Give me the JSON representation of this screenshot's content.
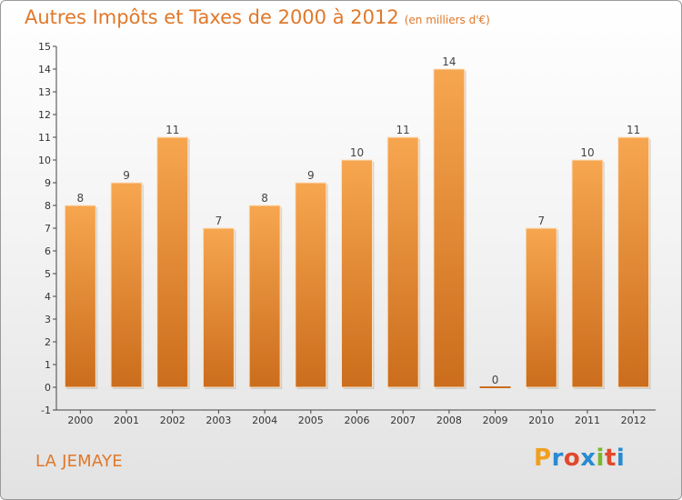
{
  "header": {
    "title": "Autres Impôts et Taxes de 2000 à 2012",
    "unit": "(en milliers d'€)"
  },
  "footer": {
    "commune": "LA JEMAYE",
    "logo": {
      "text": "Proxiti",
      "colors": [
        "#f1a01e",
        "#2a8ad1",
        "#e0492b",
        "#2a8ad1",
        "#7ab82d",
        "#e0492b",
        "#2a8ad1"
      ]
    }
  },
  "colors": {
    "bar_top": "#f7a650",
    "bar_bottom": "#cb6d1c",
    "text_accent": "#e0782a"
  },
  "chart_data": {
    "type": "bar",
    "title": "Autres Impôts et Taxes de 2000 à 2012",
    "subtitle": "(en milliers d'€)",
    "categories": [
      "2000",
      "2001",
      "2002",
      "2003",
      "2004",
      "2005",
      "2006",
      "2007",
      "2008",
      "2009",
      "2010",
      "2011",
      "2012"
    ],
    "values": [
      8,
      9,
      11,
      7,
      8,
      9,
      10,
      11,
      14,
      0,
      7,
      10,
      11
    ],
    "value_labels": [
      "8",
      "9",
      "11",
      "7",
      "8",
      "9",
      "10",
      "11",
      "14",
      "0",
      "7",
      "10",
      "11"
    ],
    "yticks": [
      "-1",
      "0",
      "1",
      "2",
      "3",
      "4",
      "5",
      "6",
      "7",
      "8",
      "9",
      "10",
      "11",
      "12",
      "13",
      "14",
      "15"
    ],
    "ylim": [
      -1,
      15
    ],
    "grid": false,
    "legend": "none"
  }
}
